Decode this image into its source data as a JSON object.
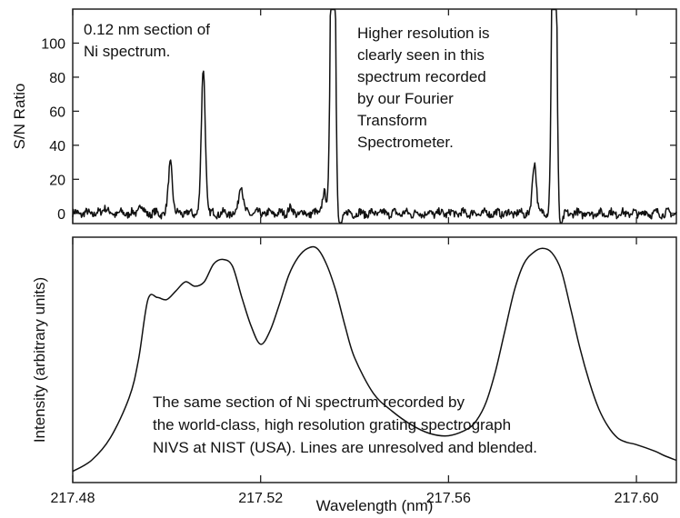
{
  "colors": {
    "line": "#111111",
    "frame": "#222222",
    "background": "#ffffff"
  },
  "chart_data": [
    {
      "type": "line",
      "panel": "top",
      "ylabel": "S/N Ratio",
      "xlim": [
        217.48,
        217.6085
      ],
      "ylim": [
        -6,
        120
      ],
      "yticks": [
        0,
        20,
        40,
        60,
        80,
        100
      ],
      "xticks": [
        217.48,
        217.52,
        217.56,
        217.6
      ],
      "grid": false,
      "annotations": [
        {
          "id": "section",
          "lines": [
            "0.12 nm section of",
            "Ni spectrum."
          ]
        },
        {
          "id": "resolution",
          "lines": [
            "Higher resolution is",
            "clearly seen in this",
            "spectrum recorded",
            "by our Fourier",
            "Transform",
            "Spectrometer."
          ]
        }
      ],
      "series": [
        {
          "baseline": 0,
          "noise_amplitude": 2.2,
          "lines": [
            {
              "x": 217.4868,
              "y": 4
            },
            {
              "x": 217.4945,
              "y": 5
            },
            {
              "x": 217.5008,
              "y": 30
            },
            {
              "x": 217.5078,
              "y": 85
            },
            {
              "x": 217.5158,
              "y": 18
            },
            {
              "x": 217.5262,
              "y": 3
            },
            {
              "x": 217.5335,
              "y": 12
            },
            {
              "x": 217.5354,
              "y": 300
            },
            {
              "x": 217.5783,
              "y": 30
            },
            {
              "x": 217.5825,
              "y": 300
            }
          ]
        }
      ]
    },
    {
      "type": "line",
      "panel": "bottom",
      "xlabel": "Wavelength (nm)",
      "ylabel": "Intensity (arbitrary units)",
      "xlim": [
        217.48,
        217.6085
      ],
      "ylim": [
        0,
        1.1
      ],
      "xticks": [
        217.48,
        217.52,
        217.56,
        217.6
      ],
      "tick_labels": [
        "217.48",
        "217.52",
        "217.56",
        "217.60"
      ],
      "grid": false,
      "annotations": [
        {
          "id": "nist",
          "lines": [
            "The same section of Ni spectrum recorded by",
            "the world-class, high resolution grating spectrograph",
            "NIVS at NIST (USA). Lines are unresolved and blended."
          ]
        }
      ],
      "series": [
        {
          "x": [
            217.48,
            217.484,
            217.488,
            217.492,
            217.494,
            217.496,
            217.498,
            217.5,
            217.502,
            217.504,
            217.506,
            217.508,
            217.51,
            217.512,
            217.514,
            217.516,
            217.518,
            217.52,
            217.522,
            217.524,
            217.526,
            217.528,
            217.53,
            217.532,
            217.534,
            217.536,
            217.538,
            217.54,
            217.544,
            217.548,
            217.552,
            217.556,
            217.56,
            217.564,
            217.566,
            217.568,
            217.57,
            217.572,
            217.574,
            217.576,
            217.578,
            217.58,
            217.582,
            217.584,
            217.586,
            217.588,
            217.59,
            217.592,
            217.594,
            217.596,
            217.598,
            217.6,
            217.604,
            217.606,
            217.6085
          ],
          "values": [
            0.05,
            0.1,
            0.2,
            0.38,
            0.55,
            0.82,
            0.83,
            0.82,
            0.86,
            0.9,
            0.88,
            0.9,
            0.98,
            1.0,
            0.97,
            0.83,
            0.7,
            0.62,
            0.68,
            0.8,
            0.93,
            1.01,
            1.05,
            1.05,
            0.98,
            0.86,
            0.7,
            0.56,
            0.4,
            0.32,
            0.26,
            0.22,
            0.21,
            0.24,
            0.28,
            0.36,
            0.5,
            0.68,
            0.86,
            0.98,
            1.03,
            1.05,
            1.03,
            0.95,
            0.78,
            0.6,
            0.45,
            0.33,
            0.25,
            0.2,
            0.18,
            0.17,
            0.14,
            0.12,
            0.1
          ]
        }
      ]
    }
  ]
}
